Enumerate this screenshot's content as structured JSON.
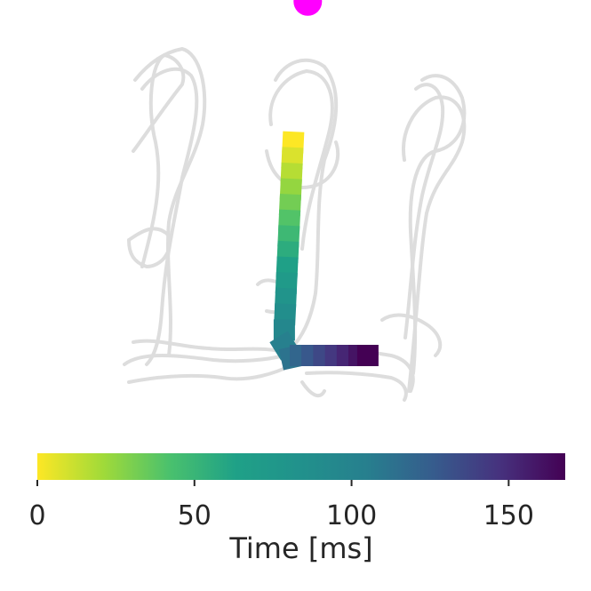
{
  "chart_data": {
    "type": "trajectory",
    "description_free": true,
    "colormap": "viridis",
    "track_color": "#dcdcdc",
    "target_color": "#ff00ff",
    "colorbar": {
      "orientation": "horizontal",
      "range": [
        0,
        168
      ],
      "ticks": [
        0,
        50,
        100,
        150
      ],
      "tick_labels": [
        "0",
        "50",
        "100",
        "150"
      ],
      "label": "Time [ms]"
    },
    "trajectory": {
      "time": [
        0,
        8,
        16,
        24,
        32,
        40,
        48,
        56,
        64,
        72,
        80,
        88,
        96,
        104,
        112,
        120,
        128,
        136,
        144,
        152,
        160,
        168
      ],
      "x": [
        -0.05,
        -0.055,
        -0.06,
        -0.065,
        -0.07,
        -0.075,
        -0.08,
        -0.085,
        -0.09,
        -0.095,
        -0.1,
        -0.105,
        -0.11,
        -0.11,
        -0.06,
        0.0,
        0.08,
        0.16,
        0.24,
        0.32,
        0.4,
        0.46
      ],
      "y": [
        0.98,
        0.9,
        0.82,
        0.74,
        0.66,
        0.58,
        0.5,
        0.42,
        0.34,
        0.26,
        0.18,
        0.1,
        0.02,
        -0.06,
        -0.12,
        -0.11,
        -0.11,
        -0.11,
        -0.11,
        -0.11,
        -0.11,
        -0.11
      ]
    },
    "target": {
      "x": 0.05,
      "y": 1.7
    }
  }
}
